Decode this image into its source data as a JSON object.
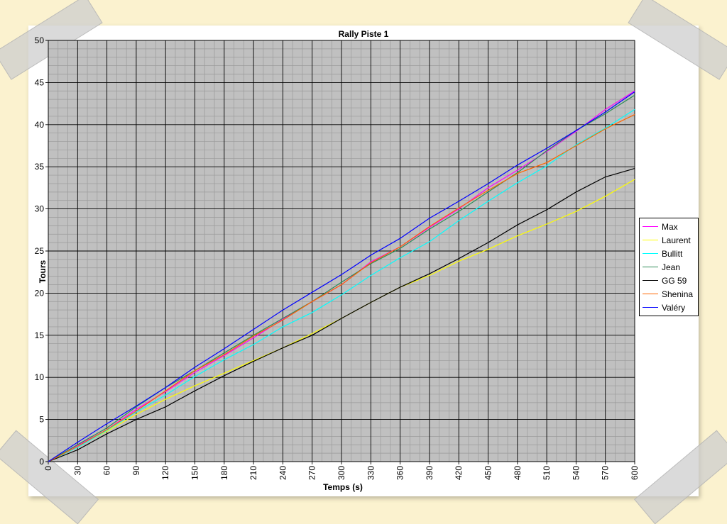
{
  "chart_data": {
    "type": "line",
    "title": "Rally Piste 1",
    "xlabel": "Temps (s)",
    "ylabel": "Tours",
    "xlim": [
      0,
      600
    ],
    "ylim": [
      0,
      50
    ],
    "x_ticks": [
      0,
      30,
      60,
      90,
      120,
      150,
      180,
      210,
      240,
      270,
      300,
      330,
      360,
      390,
      420,
      450,
      480,
      510,
      540,
      570,
      600
    ],
    "y_ticks": [
      0,
      5,
      10,
      15,
      20,
      25,
      30,
      35,
      40,
      45,
      50
    ],
    "plot_background": "#c0c0c0",
    "grid": true,
    "legend_position": "right",
    "x": [
      0,
      30,
      60,
      90,
      120,
      150,
      180,
      210,
      240,
      270,
      300,
      330,
      360,
      390,
      420,
      450,
      480,
      510,
      540,
      570,
      600
    ],
    "series": [
      {
        "name": "Max",
        "color": "#ff00ff",
        "values": [
          0,
          1.9,
          3.8,
          6.2,
          8.3,
          10.6,
          12.6,
          14.7,
          16.9,
          19.0,
          21.0,
          23.7,
          25.5,
          27.8,
          30.0,
          32.5,
          34.6,
          36.8,
          39.2,
          41.8,
          44.0
        ]
      },
      {
        "name": "Laurent",
        "color": "#ffff00",
        "values": [
          0,
          1.8,
          3.6,
          5.6,
          7.4,
          9.0,
          10.5,
          12.0,
          13.5,
          15.2,
          17.0,
          18.9,
          20.7,
          22.1,
          23.8,
          25.2,
          26.8,
          28.2,
          29.7,
          31.5,
          33.5
        ]
      },
      {
        "name": "Bullitt",
        "color": "#00ffff",
        "values": [
          0,
          1.7,
          3.7,
          5.9,
          7.9,
          10.1,
          12.1,
          13.9,
          16.0,
          17.7,
          19.8,
          22.1,
          24.2,
          26.1,
          28.6,
          30.9,
          33.1,
          35.1,
          37.6,
          39.6,
          41.8
        ]
      },
      {
        "name": "Jean",
        "color": "#2e8b57",
        "values": [
          0,
          2.0,
          4.0,
          6.5,
          8.8,
          10.8,
          12.9,
          15.0,
          17.0,
          19.0,
          21.3,
          23.5,
          25.3,
          27.6,
          29.7,
          32.0,
          34.3,
          36.9,
          39.3,
          41.3,
          43.5
        ]
      },
      {
        "name": "GG 59",
        "color": "#000000",
        "values": [
          0,
          1.4,
          3.3,
          5.0,
          6.5,
          8.4,
          10.2,
          11.9,
          13.5,
          15.0,
          17.0,
          18.9,
          20.7,
          22.3,
          24.1,
          26.0,
          28.1,
          29.9,
          32.0,
          33.8,
          34.8
        ]
      },
      {
        "name": "Shenina",
        "color": "#ff6600",
        "values": [
          0,
          1.8,
          3.8,
          6.0,
          8.4,
          10.8,
          12.7,
          14.9,
          16.8,
          19.0,
          21.0,
          23.6,
          25.5,
          27.9,
          30.1,
          32.2,
          34.2,
          35.5,
          37.5,
          39.5,
          41.2
        ]
      },
      {
        "name": "Valéry",
        "color": "#0000ff",
        "values": [
          0,
          2.3,
          4.5,
          6.6,
          8.8,
          11.2,
          13.4,
          15.7,
          18.0,
          20.1,
          22.2,
          24.5,
          26.5,
          28.9,
          30.9,
          33.0,
          35.2,
          37.2,
          39.3,
          41.5,
          43.9
        ]
      }
    ]
  }
}
